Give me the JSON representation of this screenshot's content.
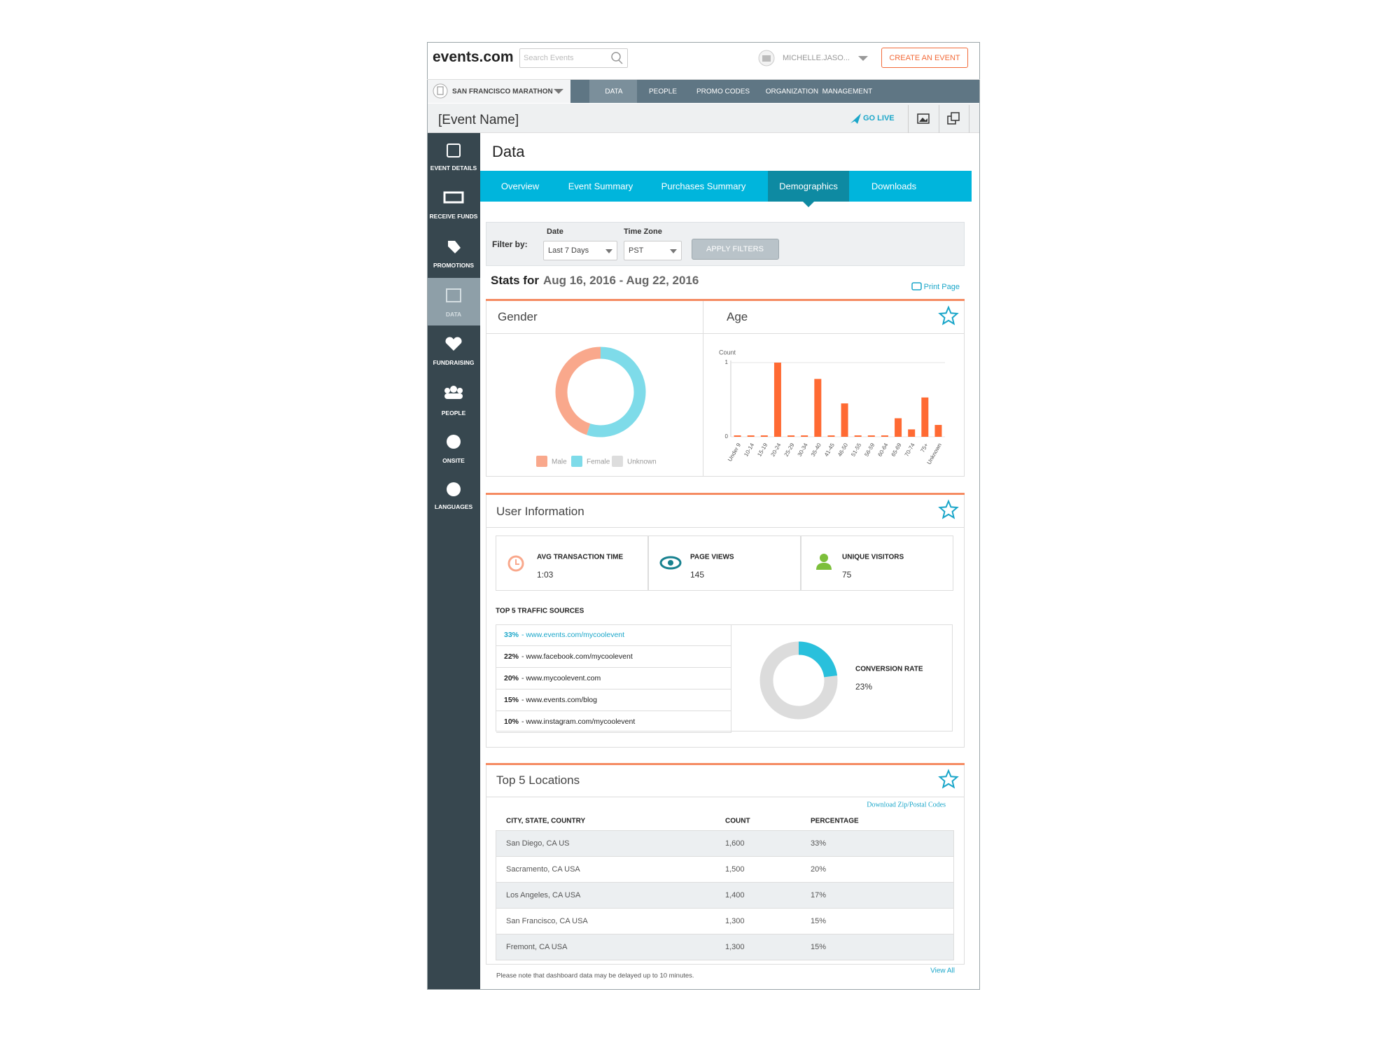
{
  "header": {
    "logo": "events.com",
    "search_placeholder": "Search Events",
    "user": "MICHELLE.JASO...",
    "create_button": "CREATE AN EVENT"
  },
  "event_selector": "SAN FRANCISCO MARATHON",
  "top_nav": [
    "DATA",
    "PEOPLE",
    "PROMO CODES",
    "ORGANIZATION  MANAGEMENT"
  ],
  "event_name": "[Event Name]",
  "go_live": "GO LIVE",
  "sidebar": [
    "EVENT DETAILS",
    "RECEIVE FUNDS",
    "PROMOTIONS",
    "DATA",
    "FUNDRAISING",
    "PEOPLE",
    "ONSITE",
    "LANGUAGES"
  ],
  "page_title": "Data",
  "tabs": [
    "Overview",
    "Event Summary",
    "Purchases Summary",
    "Demographics",
    "Downloads"
  ],
  "filter": {
    "label": "Filter by:",
    "date_label": "Date",
    "date_value": "Last 7 Days",
    "tz_label": "Time Zone",
    "tz_value": "PST",
    "apply": "APPLY FILTERS"
  },
  "stats": {
    "prefix": "Stats for",
    "range": "Aug 16, 2016 - Aug 22, 2016",
    "print": "Print Page"
  },
  "chart_data": [
    {
      "type": "pie",
      "title": "Gender",
      "categories": [
        "Male",
        "Female",
        "Unknown"
      ],
      "values": [
        45,
        55,
        0
      ],
      "colors": [
        "#f9a88c",
        "#7edbe9",
        "#dddddd"
      ]
    },
    {
      "type": "bar",
      "title": "Age",
      "y_label": "Count",
      "categories": [
        "Under 9",
        "10-14",
        "15-19",
        "20-24",
        "25-29",
        "30-34",
        "35-40",
        "41-45",
        "46-50",
        "51-55",
        "56-59",
        "60-64",
        "65-69",
        "70-74",
        "75+",
        "Unknown"
      ],
      "values": [
        0,
        0,
        0,
        1,
        0,
        0,
        0.78,
        0,
        0.45,
        0,
        0,
        0,
        0.25,
        0.1,
        0.53,
        0.16
      ],
      "color": "#ff6a33",
      "ylim": [
        0,
        1
      ],
      "yticks": [
        0,
        1
      ],
      "grid": true
    }
  ],
  "user_info": {
    "title": "User Information",
    "metrics": [
      {
        "label": "AVG TRANSACTION TIME",
        "value": "1:03"
      },
      {
        "label": "PAGE VIEWS",
        "value": 145
      },
      {
        "label": "UNIQUE VISITORS",
        "value": 75
      }
    ]
  },
  "traffic": {
    "title": "TOP 5 TRAFFIC SOURCES",
    "rows": [
      {
        "percent": "33%",
        "url": "- www.events.com/mycoolevent"
      },
      {
        "percent": "22%",
        "url": "- www.facebook.com/mycoolevent"
      },
      {
        "percent": "20%",
        "url": "- www.mycoolevent.com"
      },
      {
        "percent": "15%",
        "url": "- www.events.com/blog"
      },
      {
        "percent": "10%",
        "url": "- www.instagram.com/mycoolevent"
      }
    ]
  },
  "conversion": {
    "label": "CONVERSION RATE",
    "value": 23,
    "value_label": "23%"
  },
  "locations": {
    "title": "Top 5 Locations",
    "download": "Download Zip/Postal Codes",
    "columns": [
      "CITY, STATE, COUNTRY",
      "COUNT",
      "PERCENTAGE"
    ],
    "rows": [
      [
        "San Diego, CA US",
        "1,600",
        "33%"
      ],
      [
        "Sacramento, CA USA",
        "1,500",
        "20%"
      ],
      [
        "Los Angeles, CA USA",
        "1,400",
        "17%"
      ],
      [
        "San Francisco, CA USA",
        "1,300",
        "15%"
      ],
      [
        "Fremont, CA USA",
        "1,300",
        "15%"
      ]
    ]
  },
  "footnote": "Please note that dashboard data may be delayed up to 10 minutes.",
  "view_all": "View All"
}
